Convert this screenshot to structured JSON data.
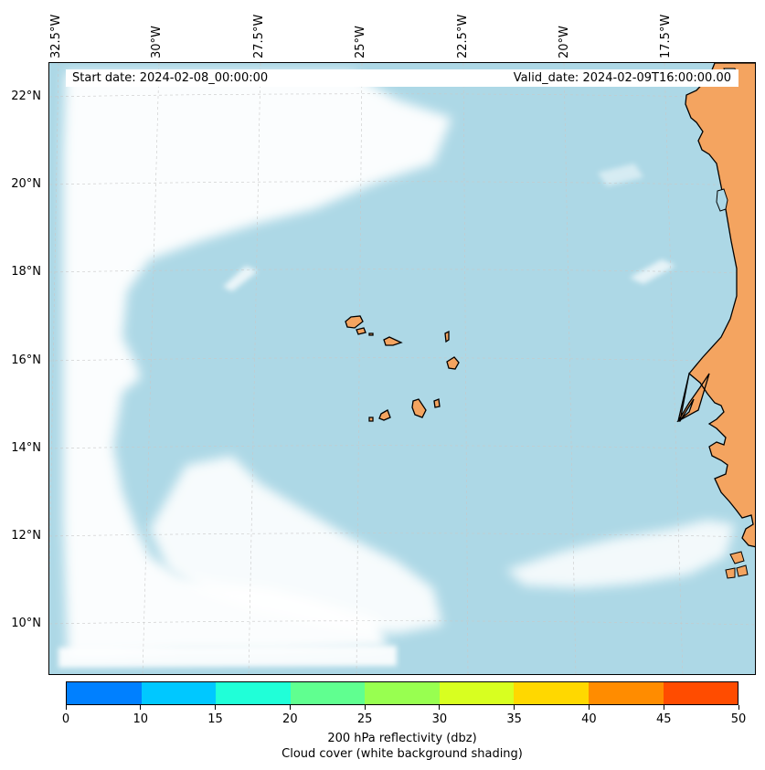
{
  "header": {
    "start_date": "Start date: 2024-02-08_00:00:00",
    "valid_date": "Valid_date: 2024-02-09T16:00:00.00"
  },
  "axes": {
    "lon_labels": [
      "32.5°W",
      "30°W",
      "27.5°W",
      "25°W",
      "22.5°W",
      "20°W",
      "17.5°W"
    ],
    "lat_labels": [
      "22°N",
      "20°N",
      "18°N",
      "16°N",
      "14°N",
      "12°N",
      "10°N"
    ],
    "gridlines": true
  },
  "map": {
    "ocean_color": "#add8e6",
    "cloud_color": "#ffffff",
    "land_color": "#f4a460",
    "coastline_color": "#000000",
    "features": [
      "African coast",
      "Cape Verde islands",
      "cloud band"
    ]
  },
  "colorbar": {
    "ticks": [
      "0",
      "10",
      "15",
      "20",
      "25",
      "30",
      "35",
      "40",
      "45",
      "50"
    ],
    "colors": [
      "#0080ff",
      "#00c8ff",
      "#20ffd8",
      "#60ff90",
      "#98ff50",
      "#d8ff20",
      "#ffd800",
      "#ff8c00",
      "#ff4c00"
    ],
    "label_line1": "200 hPa reflectivity (dbz)",
    "label_line2": "Cloud cover (white background shading)"
  }
}
